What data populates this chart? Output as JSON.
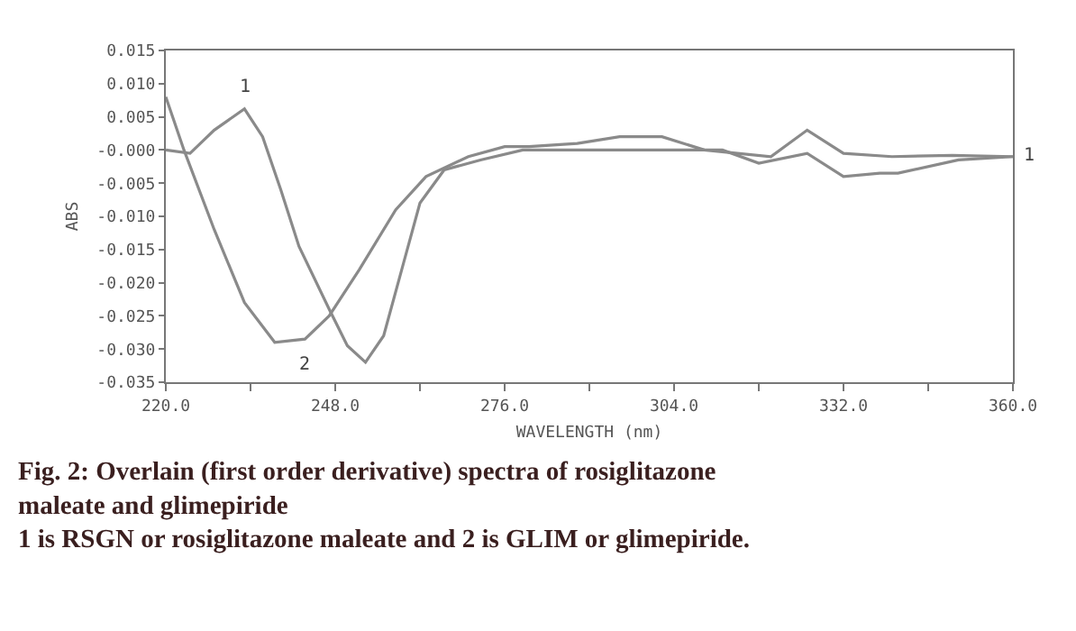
{
  "chart_data": {
    "type": "line",
    "xlabel": "WAVELENGTH (nm)",
    "ylabel": "ABS",
    "xlim": [
      220,
      360
    ],
    "xticks": [
      {
        "value": 220,
        "label": "220.0"
      },
      {
        "value": 234,
        "label": null
      },
      {
        "value": 248,
        "label": "248.0"
      },
      {
        "value": 262,
        "label": null
      },
      {
        "value": 276,
        "label": "276.0"
      },
      {
        "value": 290,
        "label": null
      },
      {
        "value": 304,
        "label": "304.0"
      },
      {
        "value": 318,
        "label": null
      },
      {
        "value": 332,
        "label": "332.0"
      },
      {
        "value": 346,
        "label": null
      },
      {
        "value": 360,
        "label": "360.0"
      }
    ],
    "ylim": [
      -0.035,
      0.015
    ],
    "yticks": [
      0.015,
      {
        "value": 0.01,
        "label": "0.010"
      },
      0.005,
      {
        "value": 0,
        "label": "-0.000"
      },
      -0.005,
      {
        "value": -0.01,
        "label": "-0.010"
      },
      -0.015,
      {
        "value": -0.02,
        "label": "-0.020"
      },
      -0.025,
      {
        "value": -0.03,
        "label": "-0.030"
      },
      -0.035
    ],
    "marker": "none",
    "line_style": "solid",
    "series": [
      {
        "color": "#8a8a8a",
        "x": [
          220,
          224,
          228,
          233,
          236,
          239,
          242,
          247,
          250,
          253,
          256,
          259,
          262,
          266,
          272,
          279,
          312,
          318,
          326,
          332,
          338,
          341,
          351,
          360
        ],
        "values": [
          0.0,
          -0.0005,
          0.003,
          0.0062,
          0.002,
          -0.006,
          -0.0145,
          -0.024,
          -0.0295,
          -0.032,
          -0.028,
          -0.018,
          -0.008,
          -0.003,
          -0.0015,
          0.0,
          0.0,
          -0.002,
          -0.0005,
          -0.004,
          -0.0035,
          -0.0035,
          -0.0015,
          -0.001
        ]
      },
      {
        "color": "#8a8a8a",
        "x": [
          220,
          223,
          228,
          233,
          238,
          243,
          247,
          252,
          258,
          263,
          270,
          276,
          280,
          288,
          295,
          302,
          309,
          320,
          326,
          332,
          340,
          350,
          360
        ],
        "values": [
          0.008,
          0.0,
          -0.012,
          -0.023,
          -0.029,
          -0.0285,
          -0.025,
          -0.018,
          -0.009,
          -0.004,
          -0.001,
          0.0005,
          0.0005,
          0.001,
          0.002,
          0.002,
          0.0,
          -0.001,
          0.003,
          -0.0005,
          -0.001,
          -0.0008,
          -0.001
        ]
      }
    ],
    "annotations": [
      {
        "text": "1",
        "x": 233,
        "y": 0.0062
      },
      {
        "text": "2",
        "x": 243,
        "y": -0.0285
      },
      {
        "text": "1",
        "x": 360,
        "y": -0.001
      },
      "Fig. 2: Overlain (first order derivative) spectra of rosiglitazone maleate and glimepiride",
      "1 is RSGN or rosiglitazone maleate and 2 is GLIM or glimepiride."
    ]
  }
}
